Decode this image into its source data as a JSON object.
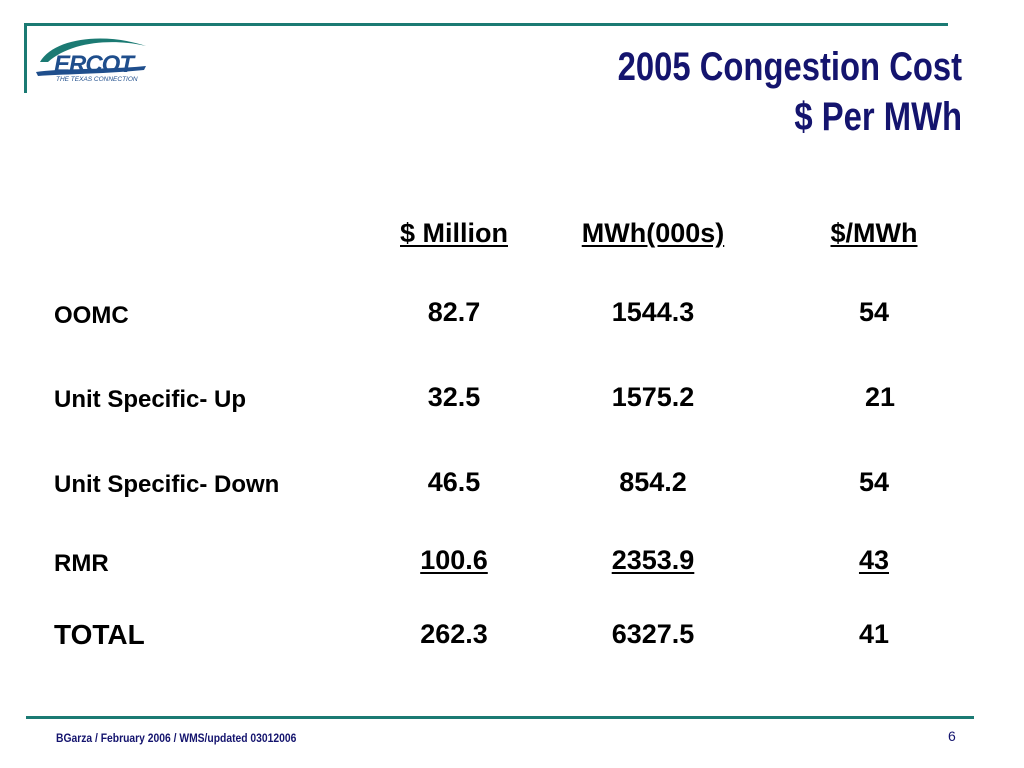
{
  "logo": {
    "name": "ERCOT",
    "tagline": "THE TEXAS CONNECTION"
  },
  "title": {
    "line1": "2005 Congestion Cost",
    "line2": "$ Per MWh"
  },
  "table": {
    "headers": [
      "$ Million",
      "MWh(000s)",
      "$/MWh"
    ],
    "rows": [
      {
        "label": "OOMC",
        "values": [
          "82.7",
          "1544.3",
          "54"
        ]
      },
      {
        "label": "Unit Specific- Up",
        "values": [
          "32.5",
          "1575.2",
          "21"
        ]
      },
      {
        "label": "Unit Specific- Down",
        "values": [
          "46.5",
          "854.2",
          "54"
        ]
      },
      {
        "label": "RMR",
        "values": [
          "100.6",
          "2353.9",
          "43"
        ]
      },
      {
        "label": "TOTAL",
        "values": [
          "262.3",
          "6327.5",
          "41"
        ]
      }
    ]
  },
  "footer": {
    "text": "BGarza / February 2006 / WMS/updated 03012006",
    "page_number": "6"
  },
  "colors": {
    "rule": "#1b7a73",
    "title": "#14146e",
    "logo": "#1f4e8c"
  }
}
